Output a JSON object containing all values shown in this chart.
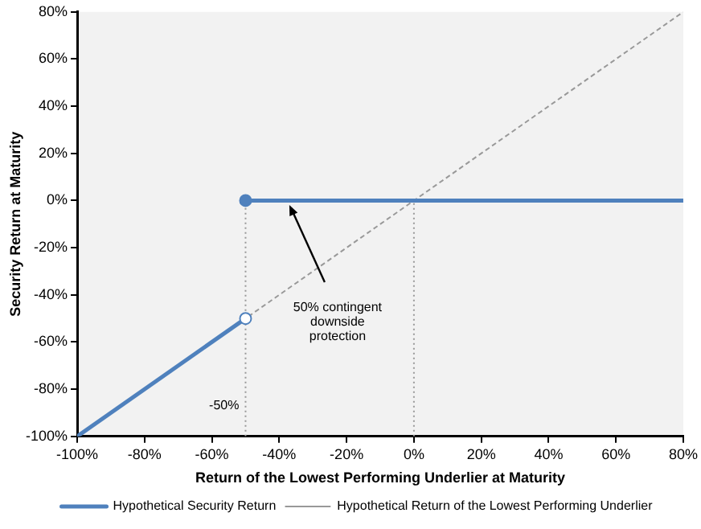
{
  "chart_data": {
    "type": "line",
    "xlabel": "Return of the Lowest Performing Underlier at Maturity",
    "ylabel": "Security Return at Maturity",
    "xlim": [
      -100,
      80
    ],
    "ylim": [
      -100,
      80
    ],
    "xticks": [
      {
        "value": -100,
        "label": "-100%"
      },
      {
        "value": -80,
        "label": "-80%"
      },
      {
        "value": -60,
        "label": "-60%"
      },
      {
        "value": -40,
        "label": "-40%"
      },
      {
        "value": -20,
        "label": "-20%"
      },
      {
        "value": 0,
        "label": "0%"
      },
      {
        "value": 20,
        "label": "20%"
      },
      {
        "value": 40,
        "label": "40%"
      },
      {
        "value": 60,
        "label": "60%"
      },
      {
        "value": 80,
        "label": "80%"
      }
    ],
    "yticks": [
      {
        "value": -100,
        "label": "-100%"
      },
      {
        "value": -80,
        "label": "-80%"
      },
      {
        "value": -60,
        "label": "-60%"
      },
      {
        "value": -40,
        "label": "-40%"
      },
      {
        "value": -20,
        "label": "-20%"
      },
      {
        "value": 0,
        "label": "0%"
      },
      {
        "value": 20,
        "label": "20%"
      },
      {
        "value": 40,
        "label": "40%"
      },
      {
        "value": 60,
        "label": "60%"
      },
      {
        "value": 80,
        "label": "80%"
      }
    ],
    "grid": false,
    "legend": "bottom",
    "marker": "none",
    "series": [
      {
        "name": "Hypothetical Security Return",
        "color": "#4f81bd",
        "x": [
          -100,
          -50
        ],
        "values": [
          -100,
          -50
        ],
        "line_style": "solid"
      },
      {
        "color": "#4f81bd",
        "x": [
          -50,
          80
        ],
        "values": [
          0,
          0
        ],
        "line_style": "solid"
      },
      {
        "name": "Hypothetical Return of the Lowest Performing Underlier",
        "color": "#999999",
        "x": [
          -100,
          80
        ],
        "values": [
          -100,
          80
        ],
        "line_style": "dashed"
      },
      {
        "color": "#999999",
        "x": [
          -50,
          -50
        ],
        "values": [
          -100,
          0
        ],
        "line_style": "dotted"
      },
      {
        "color": "#999999",
        "x": [
          0,
          0
        ],
        "values": [
          -100,
          0
        ],
        "line_style": "dotted"
      },
      {
        "type": "scatter",
        "color": "#4f81bd",
        "x": [
          -50
        ],
        "values": [
          0
        ],
        "marker": "circle"
      },
      {
        "type": "scatter",
        "color": "#ffffff",
        "x": [
          -50
        ],
        "values": [
          -50
        ],
        "marker": "circle"
      }
    ],
    "annotations": [
      "50% contingent downside protection",
      {
        "text": "-50%",
        "x": -50,
        "y": -87
      }
    ]
  }
}
